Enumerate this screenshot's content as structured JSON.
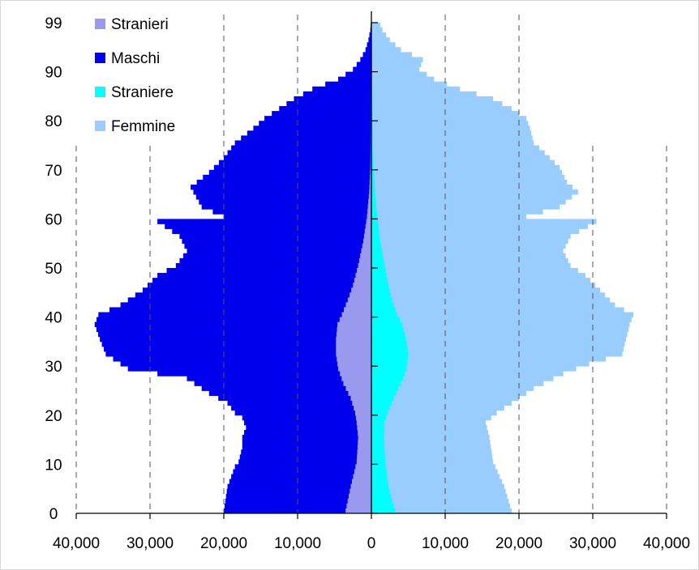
{
  "chart_data": {
    "type": "bar",
    "orientation": "horizontal-pyramid",
    "title": "",
    "xlabel": "",
    "ylabel": "",
    "xlim": [
      -40000,
      40000
    ],
    "ylim": [
      0,
      99
    ],
    "x_ticks": [
      -40000,
      -30000,
      -20000,
      -10000,
      0,
      10000,
      20000,
      30000,
      40000
    ],
    "x_tick_labels": [
      "40,000",
      "30,000",
      "20,000",
      "10,000",
      "0",
      "10,000",
      "20,000",
      "30,000",
      "40,000"
    ],
    "y_ticks": [
      0,
      10,
      20,
      30,
      40,
      50,
      60,
      70,
      80,
      90,
      99
    ],
    "y_tick_labels": [
      "0",
      "10",
      "20",
      "30",
      "40",
      "50",
      "60",
      "70",
      "80",
      "90",
      "99"
    ],
    "grid": "vertical dashed",
    "legend_position": "top-left",
    "legend": [
      {
        "label": "Stranieri",
        "color": "#9999ee"
      },
      {
        "label": "Maschi",
        "color": "#0000ee"
      },
      {
        "label": "Straniere",
        "color": "#00ffff"
      },
      {
        "label": "Femmine",
        "color": "#99ccff"
      }
    ],
    "series": [
      {
        "name": "Maschi",
        "side": "left",
        "color": "#0000ee",
        "keypoints": [
          [
            0,
            20000
          ],
          [
            5,
            19500
          ],
          [
            9,
            18500
          ],
          [
            10,
            18000
          ],
          [
            13,
            17500
          ],
          [
            15,
            17500
          ],
          [
            17,
            17000
          ],
          [
            19,
            17500
          ],
          [
            20,
            18500
          ],
          [
            22,
            19500
          ],
          [
            24,
            22000
          ],
          [
            27,
            25000
          ],
          [
            29,
            33000
          ],
          [
            32,
            36000
          ],
          [
            35,
            36800
          ],
          [
            38,
            37500
          ],
          [
            40,
            37000
          ],
          [
            42,
            34000
          ],
          [
            45,
            31000
          ],
          [
            48,
            29000
          ],
          [
            50,
            26500
          ],
          [
            53,
            25000
          ],
          [
            56,
            26000
          ],
          [
            59,
            29000
          ],
          [
            60,
            20000
          ],
          [
            62,
            23000
          ],
          [
            66,
            24500
          ],
          [
            69,
            22000
          ],
          [
            72,
            20000
          ],
          [
            75,
            18500
          ],
          [
            78,
            16000
          ],
          [
            80,
            14500
          ],
          [
            82,
            12500
          ],
          [
            84,
            10500
          ],
          [
            86,
            8000
          ],
          [
            88,
            4500
          ],
          [
            90,
            2500
          ],
          [
            92,
            1500
          ],
          [
            94,
            800
          ],
          [
            96,
            400
          ],
          [
            98,
            150
          ],
          [
            99,
            100
          ]
        ]
      },
      {
        "name": "Stranieri",
        "side": "left",
        "color": "#9999ee",
        "keypoints": [
          [
            0,
            3500
          ],
          [
            5,
            2800
          ],
          [
            10,
            2000
          ],
          [
            15,
            1800
          ],
          [
            18,
            2000
          ],
          [
            20,
            2200
          ],
          [
            23,
            2800
          ],
          [
            26,
            3800
          ],
          [
            29,
            4500
          ],
          [
            32,
            4800
          ],
          [
            35,
            4800
          ],
          [
            38,
            4600
          ],
          [
            40,
            4000
          ],
          [
            43,
            3200
          ],
          [
            46,
            2500
          ],
          [
            50,
            1800
          ],
          [
            55,
            1100
          ],
          [
            60,
            600
          ],
          [
            65,
            300
          ],
          [
            70,
            150
          ],
          [
            80,
            80
          ],
          [
            90,
            30
          ],
          [
            99,
            10
          ]
        ]
      },
      {
        "name": "Femmine",
        "side": "right",
        "color": "#99ccff",
        "keypoints": [
          [
            0,
            19000
          ],
          [
            5,
            18000
          ],
          [
            10,
            16500
          ],
          [
            15,
            16000
          ],
          [
            18,
            15500
          ],
          [
            20,
            17000
          ],
          [
            22,
            19000
          ],
          [
            25,
            22000
          ],
          [
            28,
            26000
          ],
          [
            30,
            29500
          ],
          [
            32,
            34000
          ],
          [
            35,
            34500
          ],
          [
            38,
            35000
          ],
          [
            40,
            35500
          ],
          [
            42,
            33000
          ],
          [
            45,
            31000
          ],
          [
            48,
            29000
          ],
          [
            50,
            27000
          ],
          [
            53,
            26000
          ],
          [
            56,
            27000
          ],
          [
            59,
            30500
          ],
          [
            60,
            21000
          ],
          [
            62,
            25500
          ],
          [
            65,
            28000
          ],
          [
            67,
            26500
          ],
          [
            70,
            25500
          ],
          [
            73,
            23500
          ],
          [
            75,
            22000
          ],
          [
            78,
            21500
          ],
          [
            80,
            21000
          ],
          [
            82,
            19000
          ],
          [
            84,
            16500
          ],
          [
            86,
            12000
          ],
          [
            88,
            8500
          ],
          [
            90,
            6500
          ],
          [
            92,
            7000
          ],
          [
            94,
            4000
          ],
          [
            96,
            2500
          ],
          [
            98,
            1500
          ],
          [
            99,
            1200
          ]
        ]
      },
      {
        "name": "Straniere",
        "side": "right",
        "color": "#00ffff",
        "keypoints": [
          [
            0,
            3200
          ],
          [
            5,
            2300
          ],
          [
            10,
            1900
          ],
          [
            15,
            1700
          ],
          [
            18,
            1800
          ],
          [
            20,
            2200
          ],
          [
            23,
            3000
          ],
          [
            26,
            4000
          ],
          [
            29,
            4800
          ],
          [
            32,
            5000
          ],
          [
            35,
            4700
          ],
          [
            38,
            4200
          ],
          [
            40,
            3500
          ],
          [
            43,
            2800
          ],
          [
            46,
            2300
          ],
          [
            50,
            1800
          ],
          [
            55,
            1200
          ],
          [
            60,
            800
          ],
          [
            65,
            500
          ],
          [
            70,
            300
          ],
          [
            80,
            150
          ],
          [
            90,
            60
          ],
          [
            99,
            20
          ]
        ]
      }
    ]
  }
}
